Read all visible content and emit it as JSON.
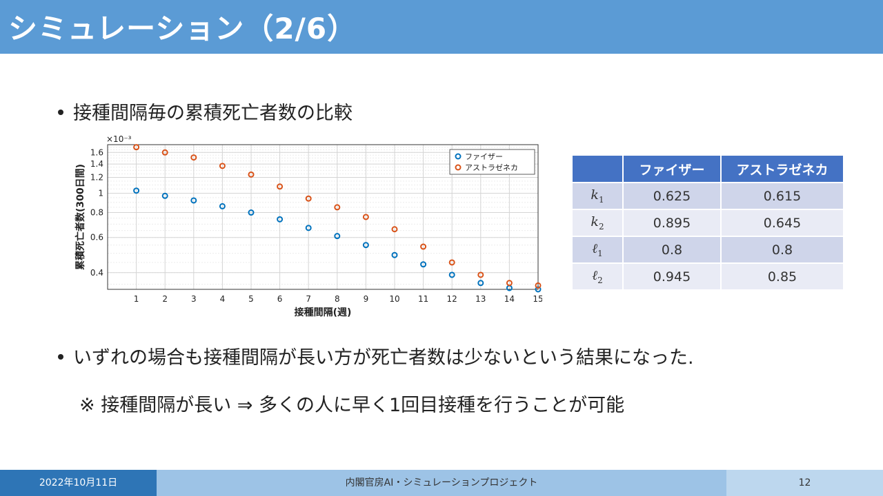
{
  "slide": {
    "title": "シミュレーション（2/6）",
    "bullet1": "接種間隔毎の累積死亡者数の比較",
    "bullet2": "いずれの場合も接種間隔が長い方が死亡者数は少ないという結果になった.",
    "note": "※ 接種間隔が長い ⇒ 多くの人に早く1回目接種を行うことが可能"
  },
  "table": {
    "headers": [
      "",
      "ファイザー",
      "アストラゼネカ"
    ],
    "rows": [
      {
        "param": "k",
        "sub": "1",
        "pfizer": "0.625",
        "az": "0.615"
      },
      {
        "param": "k",
        "sub": "2",
        "pfizer": "0.895",
        "az": "0.645"
      },
      {
        "param": "ℓ",
        "sub": "1",
        "pfizer": "0.8",
        "az": "0.8"
      },
      {
        "param": "ℓ",
        "sub": "2",
        "pfizer": "0.945",
        "az": "0.85"
      }
    ]
  },
  "footer": {
    "date": "2022年10月11日",
    "project": "内閣官房AI・シミュレーションプロジェクト",
    "page": "12"
  },
  "chart_data": {
    "type": "scatter",
    "xlabel": "接種間隔(週)",
    "ylabel": "累積死亡者数(300日間)",
    "y_exponent": "×10⁻³",
    "y_scale": "log",
    "x": [
      1,
      2,
      3,
      4,
      5,
      6,
      7,
      8,
      9,
      10,
      11,
      12,
      13,
      14,
      15
    ],
    "xlim": [
      0,
      15
    ],
    "ylim": [
      0.33,
      1.75
    ],
    "yticks": [
      0.4,
      0.6,
      0.8,
      1,
      1.2,
      1.4,
      1.6
    ],
    "ytick_labels": [
      "0.4",
      "0.6",
      "0.8",
      "1",
      "1.2",
      "1.4",
      "1.6"
    ],
    "grid": true,
    "legend": "top-right",
    "series": [
      {
        "name": "ファイザー",
        "color": "#0072bd",
        "values": [
          1.03,
          0.97,
          0.92,
          0.86,
          0.8,
          0.74,
          0.67,
          0.61,
          0.55,
          0.49,
          0.44,
          0.39,
          0.355,
          0.335,
          0.33
        ]
      },
      {
        "name": "アストラゼネカ",
        "color": "#d95319",
        "values": [
          1.7,
          1.6,
          1.51,
          1.37,
          1.24,
          1.08,
          0.94,
          0.85,
          0.76,
          0.66,
          0.54,
          0.45,
          0.39,
          0.355,
          0.345
        ]
      }
    ]
  }
}
